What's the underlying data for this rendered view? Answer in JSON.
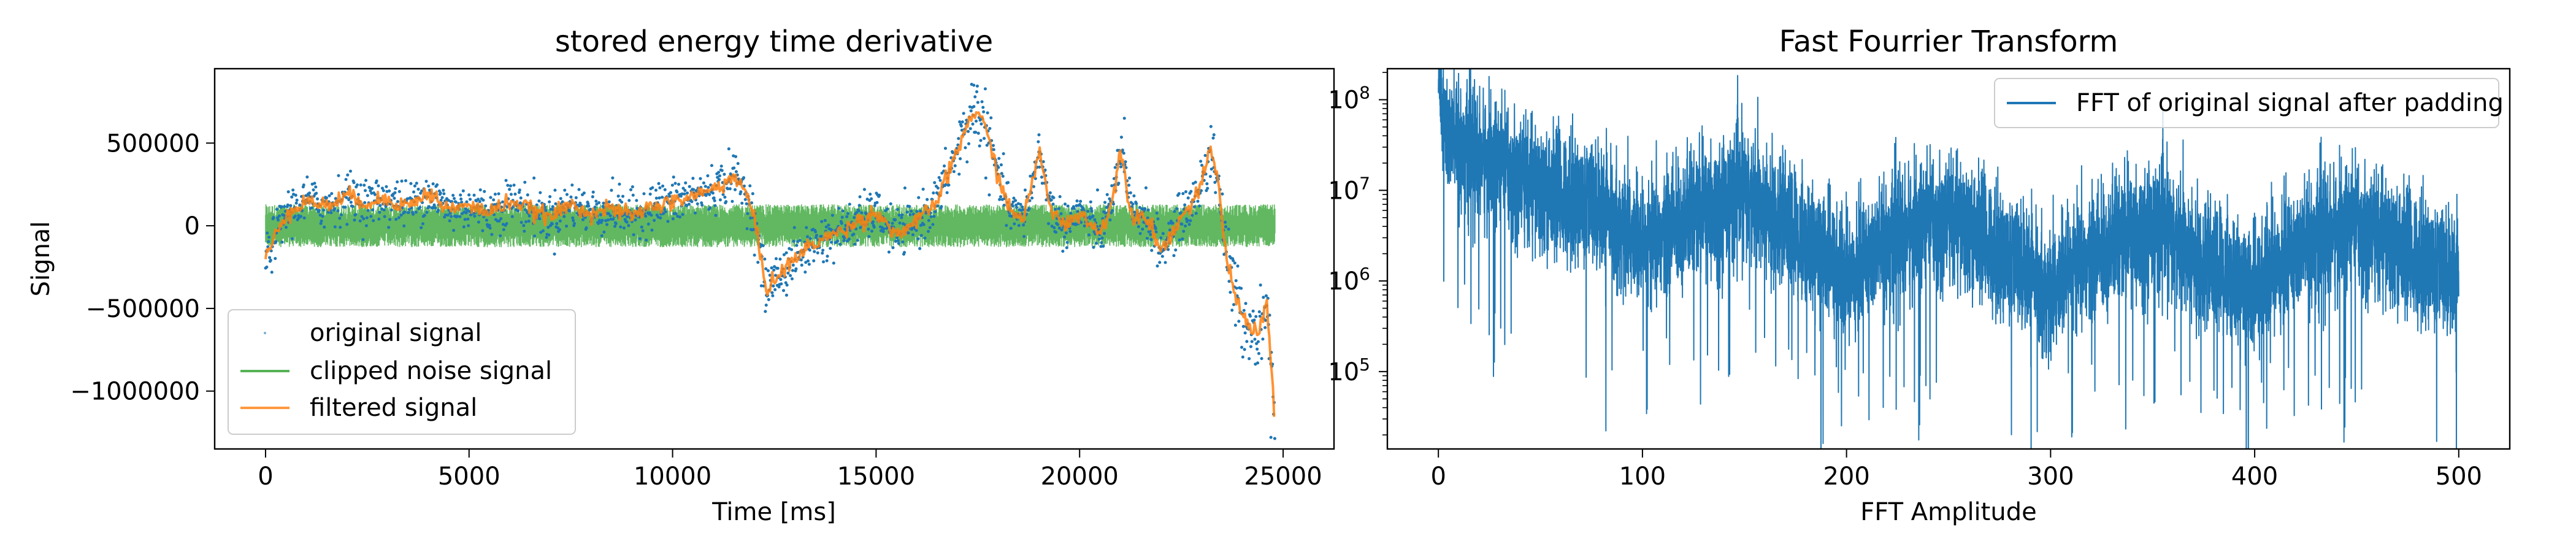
{
  "chart_data": [
    {
      "type": "scatter",
      "title": "stored energy time derivative",
      "xlabel": "Time [ms]",
      "ylabel": "Signal",
      "xlim": [
        -1250,
        26250
      ],
      "ylim": [
        -1350000,
        950000
      ],
      "xticks": [
        0,
        5000,
        10000,
        15000,
        20000,
        25000
      ],
      "xtick_labels": [
        "0",
        "5000",
        "10000",
        "15000",
        "20000",
        "25000"
      ],
      "yticks": [
        500000,
        0,
        -500000,
        -1000000
      ],
      "ytick_labels": [
        "500000",
        "0",
        "−500000",
        "−1000000"
      ],
      "grid": false,
      "legend_position": "lower-left",
      "legend": [
        "original signal",
        "clipped noise signal",
        "filtered signal"
      ],
      "colors": {
        "original": "#1f77b4",
        "noise": "#2ca02c",
        "filtered": "#ff7f0e"
      },
      "series": [
        {
          "name": "filtered signal",
          "kind": "line",
          "x": [
            0,
            500,
            1000,
            1500,
            2000,
            2500,
            3000,
            3500,
            4000,
            4500,
            5000,
            5500,
            6000,
            6500,
            7000,
            7500,
            8000,
            8500,
            9000,
            9500,
            10000,
            10500,
            11000,
            11500,
            11800,
            12000,
            12300,
            12600,
            13000,
            13500,
            14000,
            14500,
            15000,
            15500,
            16000,
            16500,
            17000,
            17300,
            17500,
            17800,
            18000,
            18300,
            18600,
            18800,
            19000,
            19300,
            19600,
            20000,
            20500,
            20800,
            21000,
            21300,
            21600,
            22000,
            22500,
            22800,
            23000,
            23200,
            23400,
            23600,
            23800,
            24000,
            24200,
            24400,
            24600,
            24800
          ],
          "y": [
            -200000,
            80000,
            150000,
            120000,
            180000,
            140000,
            160000,
            120000,
            200000,
            100000,
            120000,
            80000,
            150000,
            100000,
            50000,
            130000,
            80000,
            100000,
            60000,
            120000,
            140000,
            180000,
            220000,
            300000,
            200000,
            50000,
            -380000,
            -300000,
            -200000,
            -100000,
            -50000,
            20000,
            80000,
            -50000,
            20000,
            150000,
            450000,
            650000,
            700000,
            500000,
            300000,
            80000,
            50000,
            200000,
            450000,
            100000,
            0,
            80000,
            -50000,
            150000,
            450000,
            50000,
            80000,
            -150000,
            50000,
            150000,
            250000,
            450000,
            300000,
            -200000,
            -400000,
            -550000,
            -600000,
            -650000,
            -450000,
            -1200000
          ]
        },
        {
          "name": "clipped noise signal",
          "kind": "band",
          "x": [
            0,
            24800
          ],
          "y": [
            -130000,
            130000
          ]
        },
        {
          "name": "original signal",
          "kind": "scatter",
          "x": [
            17400,
            17600,
            19000,
            21100,
            23300,
            24700,
            12300,
            12800
          ],
          "y": [
            850000,
            750000,
            550000,
            650000,
            550000,
            -1280000,
            -480000,
            -420000
          ]
        }
      ]
    },
    {
      "type": "line",
      "title": "Fast Fourrier Transform",
      "xlabel": "FFT Amplitude",
      "ylabel": "",
      "xlim": [
        -25,
        525
      ],
      "ylim_log": [
        14000,
        220000000
      ],
      "yscale": "log",
      "xticks": [
        0,
        100,
        200,
        300,
        400,
        500
      ],
      "xtick_labels": [
        "0",
        "100",
        "200",
        "300",
        "400",
        "500"
      ],
      "ytick_exponents": [
        5,
        6,
        7,
        8
      ],
      "ytick_base": "10",
      "grid": false,
      "legend_position": "top-right",
      "legend": [
        "FFT of original signal after padding"
      ],
      "colors": {
        "fft": "#1f77b4"
      },
      "series": [
        {
          "name": "FFT of original signal after padding",
          "x": [
            0,
            2,
            5,
            10,
            25,
            50,
            75,
            100,
            125,
            150,
            175,
            200,
            225,
            250,
            275,
            300,
            325,
            350,
            375,
            400,
            425,
            450,
            475,
            500
          ],
          "y": [
            200000000,
            70000000,
            40000000,
            30000000,
            20000000,
            10000000,
            7000000,
            2000000,
            5000000,
            9000000,
            3000000,
            1000000,
            3000000,
            5000000,
            2000000,
            700000,
            2000000,
            4000000,
            1500000,
            700000,
            2500000,
            4000000,
            2000000,
            1000000
          ]
        }
      ]
    }
  ]
}
